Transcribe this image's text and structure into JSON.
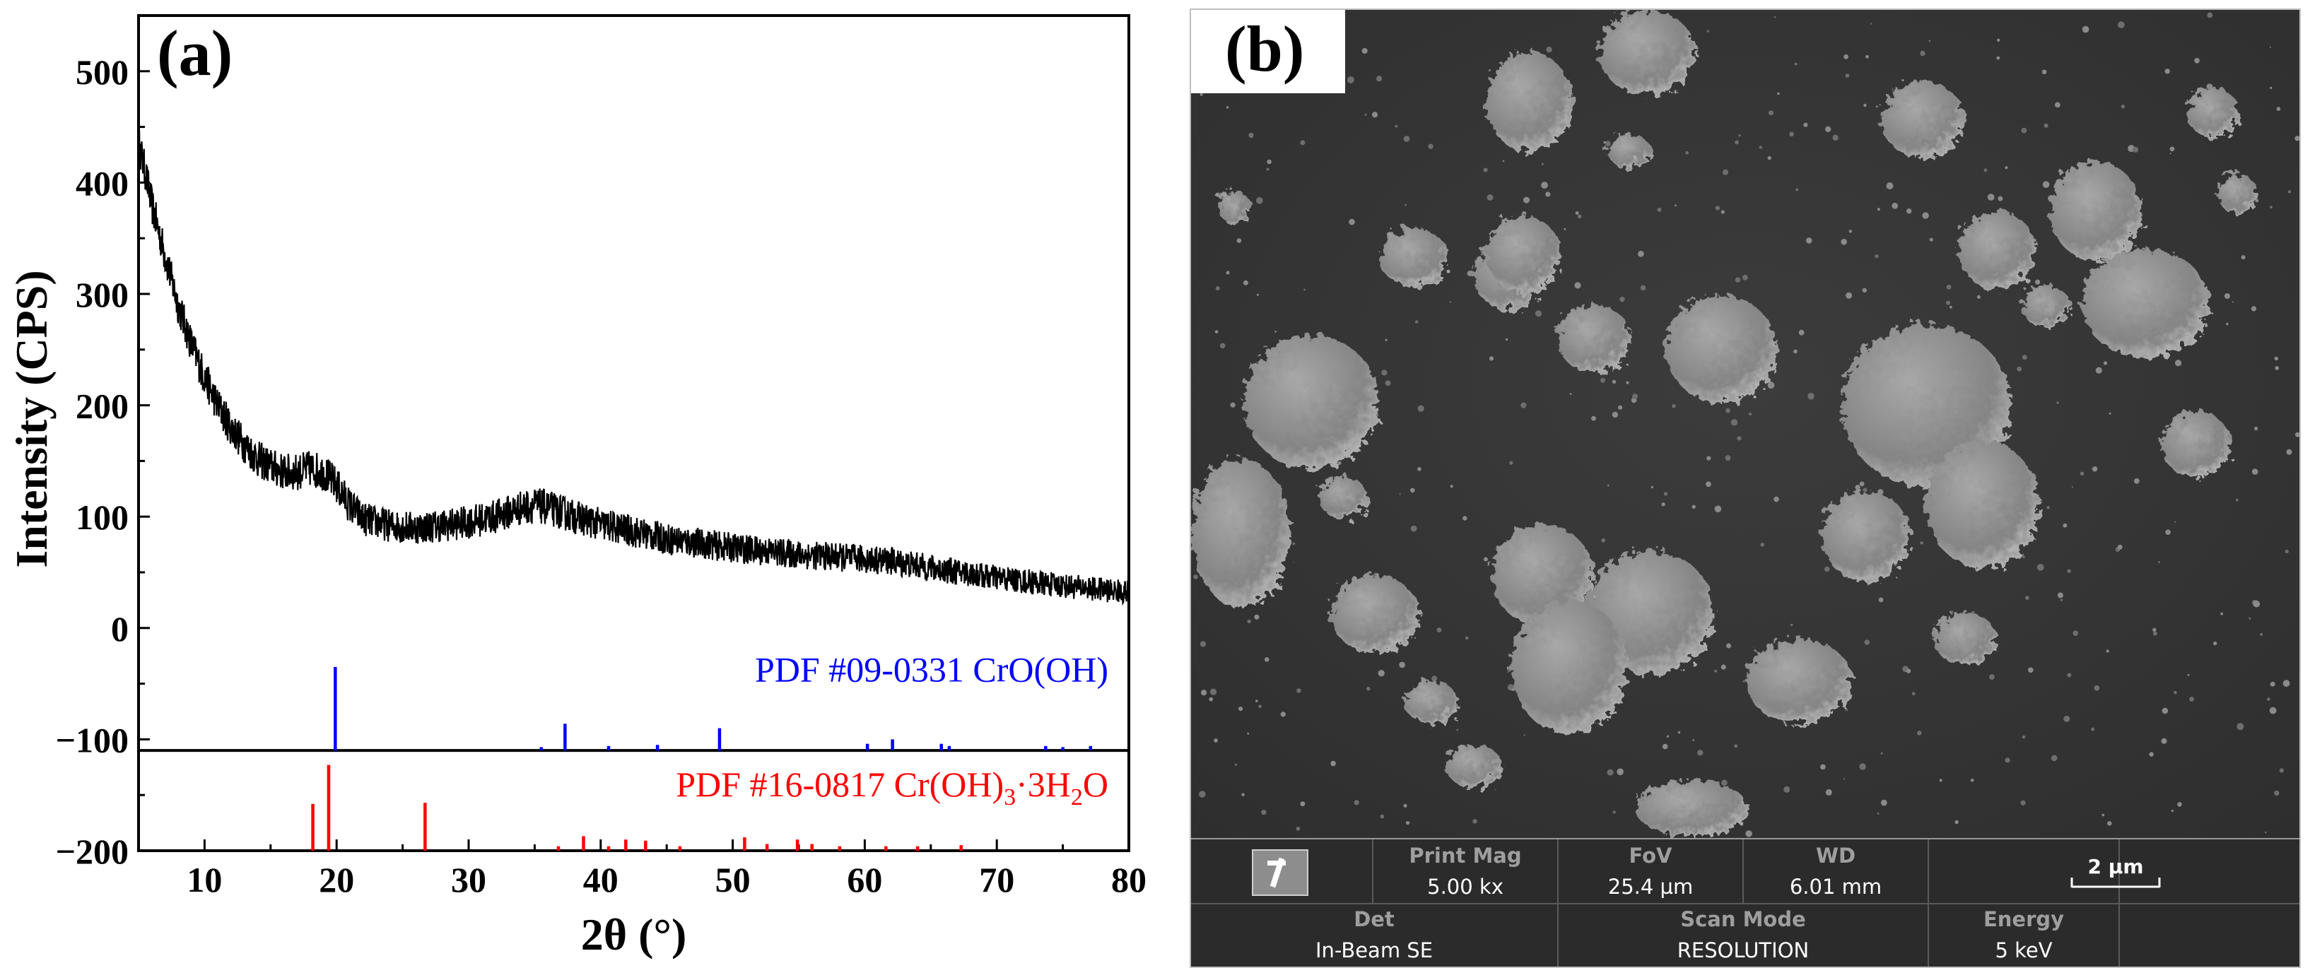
{
  "panel_a": {
    "letter": "(a)",
    "ylabel": "Intensity (CPS)",
    "xlabel": "2θ (°)",
    "pdf1_label": "PDF #09-0331 CrO(OH)",
    "pdf2_label_parts": [
      "PDF #16-0817 Cr(OH)",
      "3",
      "·3H",
      "2",
      "O"
    ],
    "xticks": [
      10,
      20,
      30,
      40,
      50,
      60,
      70,
      80
    ],
    "yticks": [
      500,
      400,
      300,
      200,
      100,
      0,
      -100,
      -200
    ],
    "ytick_labels": [
      "500",
      "400",
      "300",
      "200",
      "100",
      "0",
      "−100",
      "−200"
    ]
  },
  "chart_data": {
    "type": "line",
    "xlabel": "2θ (°)",
    "ylabel": "Intensity (CPS)",
    "xlim": [
      5,
      80
    ],
    "ylim": [
      -200,
      550
    ],
    "series": [
      {
        "kind": "xrd_pattern",
        "color": "#000000",
        "x": [
          5,
          5.5,
          6,
          7,
          8,
          9,
          10,
          11,
          12,
          13,
          14,
          15,
          16,
          17,
          18,
          19,
          20,
          21,
          22,
          24,
          26,
          28,
          30,
          32,
          34,
          35,
          36,
          38,
          40,
          42,
          45,
          50,
          55,
          60,
          62,
          65,
          70,
          75,
          80
        ],
        "y": [
          435,
          410,
          380,
          335,
          290,
          255,
          225,
          200,
          180,
          165,
          152,
          145,
          140,
          140,
          143,
          140,
          128,
          110,
          98,
          92,
          90,
          92,
          95,
          100,
          108,
          110,
          108,
          100,
          93,
          88,
          80,
          72,
          66,
          62,
          60,
          54,
          45,
          38,
          32
        ],
        "noise": 14
      },
      {
        "name": "PDF #09-0331 CrO(OH)",
        "kind": "reference_sticks",
        "color": "#0000ff",
        "baseline": -110,
        "x": [
          19.9,
          35.5,
          37.3,
          40.6,
          44.3,
          49.0,
          60.2,
          62.1,
          65.8,
          66.4,
          73.7,
          75.0,
          77.1
        ],
        "y": [
          -35,
          -107,
          -86,
          -106,
          -105,
          -90,
          -104,
          -100,
          -104,
          -106,
          -106,
          -107,
          -106
        ]
      },
      {
        "name": "PDF #16-0817 Cr(OH)3·3H2O",
        "kind": "reference_sticks",
        "color": "#ff0000",
        "baseline": -200,
        "x": [
          18.2,
          19.4,
          26.7,
          36.8,
          38.7,
          40.6,
          41.9,
          43.4,
          46.0,
          50.9,
          52.6,
          54.9,
          56.0,
          58.1,
          61.6,
          64.0,
          67.3
        ],
        "y": [
          -158,
          -123,
          -157,
          -196,
          -187,
          -196,
          -190,
          -191,
          -196,
          -188,
          -194,
          -190,
          -194,
          -196,
          -196,
          -196,
          -195
        ]
      }
    ],
    "grid": false
  },
  "panel_b": {
    "letter": "(b)",
    "scale_bar": "2 µm",
    "databar": {
      "print_mag_label": "Print Mag",
      "print_mag_value": "5.00 kx",
      "fov_label": "FoV",
      "fov_value": "25.4 µm",
      "wd_label": "WD",
      "wd_value": "6.01 mm",
      "det_label": "Det",
      "det_value": "In-Beam SE",
      "scan_mode_label": "Scan Mode",
      "scan_mode_value": "RESOLUTION",
      "energy_label": "Energy",
      "energy_value": "5 keV"
    },
    "logo_icon": "tescan-logo-icon"
  }
}
